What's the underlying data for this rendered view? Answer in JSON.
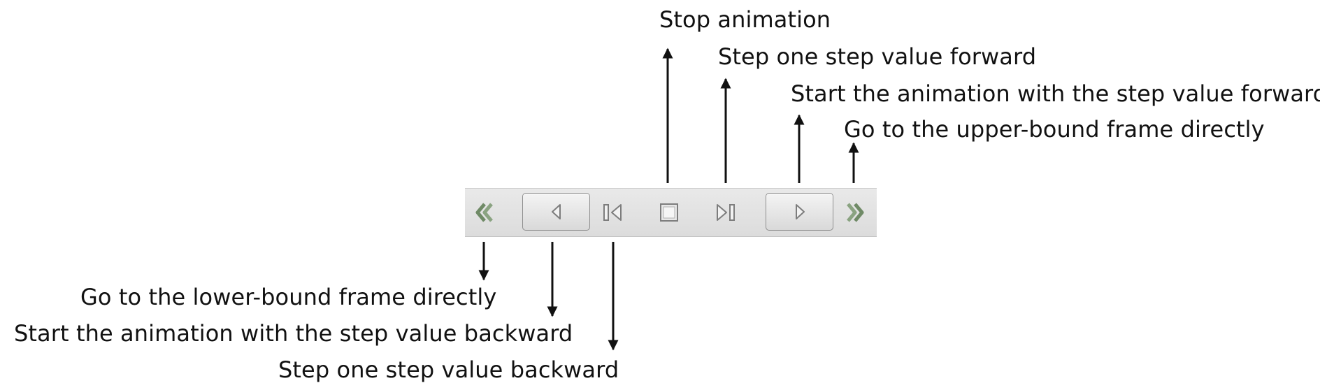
{
  "labels": {
    "stop": "Stop animation",
    "step_forward": "Step one step value forward",
    "play_forward": "Start the animation with the step value forward",
    "last_frame": "Go to the upper-bound frame directly",
    "first_frame": "Go to the lower-bound frame directly",
    "play_backward": "Start the animation with the step value backward",
    "step_backward": "Step one step value backward"
  },
  "toolbar": {
    "buttons": [
      {
        "icon": "double-chevron-left-icon"
      },
      {
        "icon": "play-backward-icon"
      },
      {
        "icon": "step-backward-icon"
      },
      {
        "icon": "stop-icon"
      },
      {
        "icon": "step-forward-icon"
      },
      {
        "icon": "play-forward-icon"
      },
      {
        "icon": "double-chevron-right-icon"
      }
    ]
  },
  "colors": {
    "arrow": "#111111",
    "icon_stroke": "#7d7d7d",
    "chevron": "#6f8a66",
    "toolbar_bg": "#e2e2e2"
  }
}
